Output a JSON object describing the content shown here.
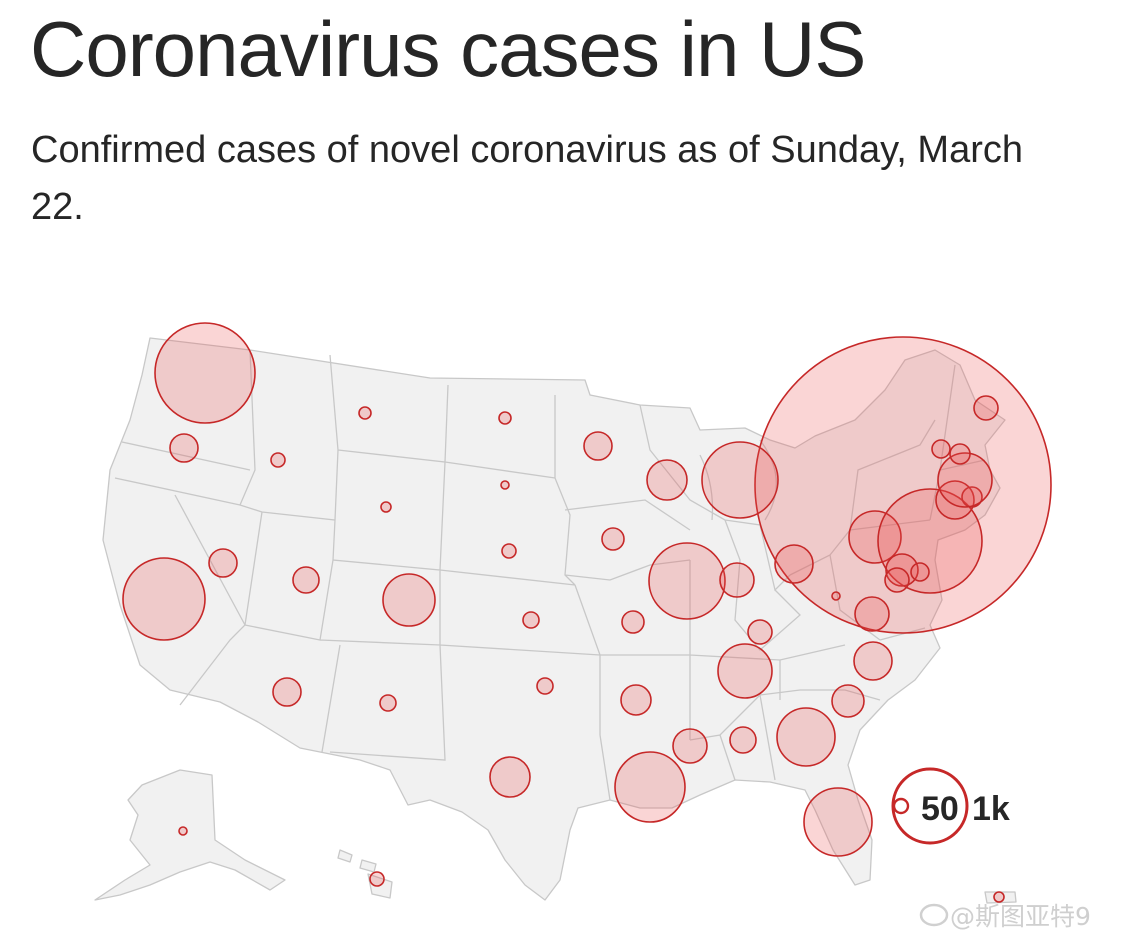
{
  "header": {
    "title": "Coronavirus cases in US",
    "subtitle": "Confirmed cases of novel coronavirus as of Sunday, March 22."
  },
  "colors": {
    "bubble_fill": "#ec5050",
    "bubble_stroke": "#c62828",
    "land": "#f1f1f1",
    "state_border": "#c8c8c8"
  },
  "legend": {
    "small_label": "50",
    "large_label": "1k"
  },
  "watermark": {
    "text": "@斯图亚特9"
  }
}
